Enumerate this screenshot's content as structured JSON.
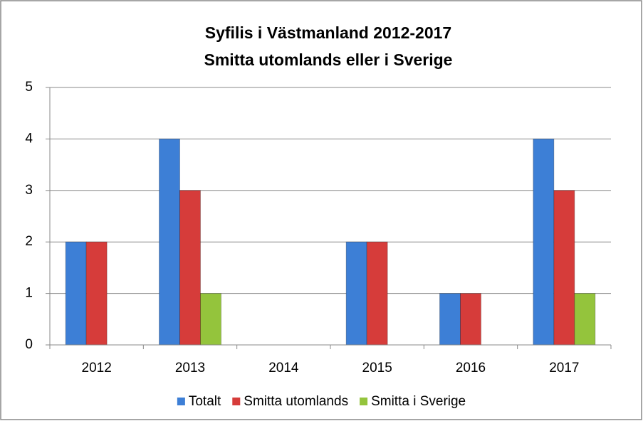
{
  "chart_data": {
    "type": "bar",
    "title": "Syfilis i Västmanland 2012-2017",
    "subtitle": "Smitta utomlands eller i Sverige",
    "categories": [
      "2012",
      "2013",
      "2014",
      "2015",
      "2016",
      "2017"
    ],
    "series": [
      {
        "name": "Totalt",
        "color": "#3d7fd6",
        "values": [
          2,
          4,
          0,
          2,
          1,
          4
        ]
      },
      {
        "name": "Smitta utomlands",
        "color": "#d63c3a",
        "values": [
          2,
          3,
          0,
          2,
          1,
          3
        ]
      },
      {
        "name": "Smitta i Sverige",
        "color": "#94c43c",
        "values": [
          0,
          1,
          0,
          0,
          0,
          1
        ]
      }
    ],
    "ylim": [
      0,
      5
    ],
    "yticks": [
      0,
      1,
      2,
      3,
      4,
      5
    ],
    "grid": true,
    "legend": "bottom"
  }
}
